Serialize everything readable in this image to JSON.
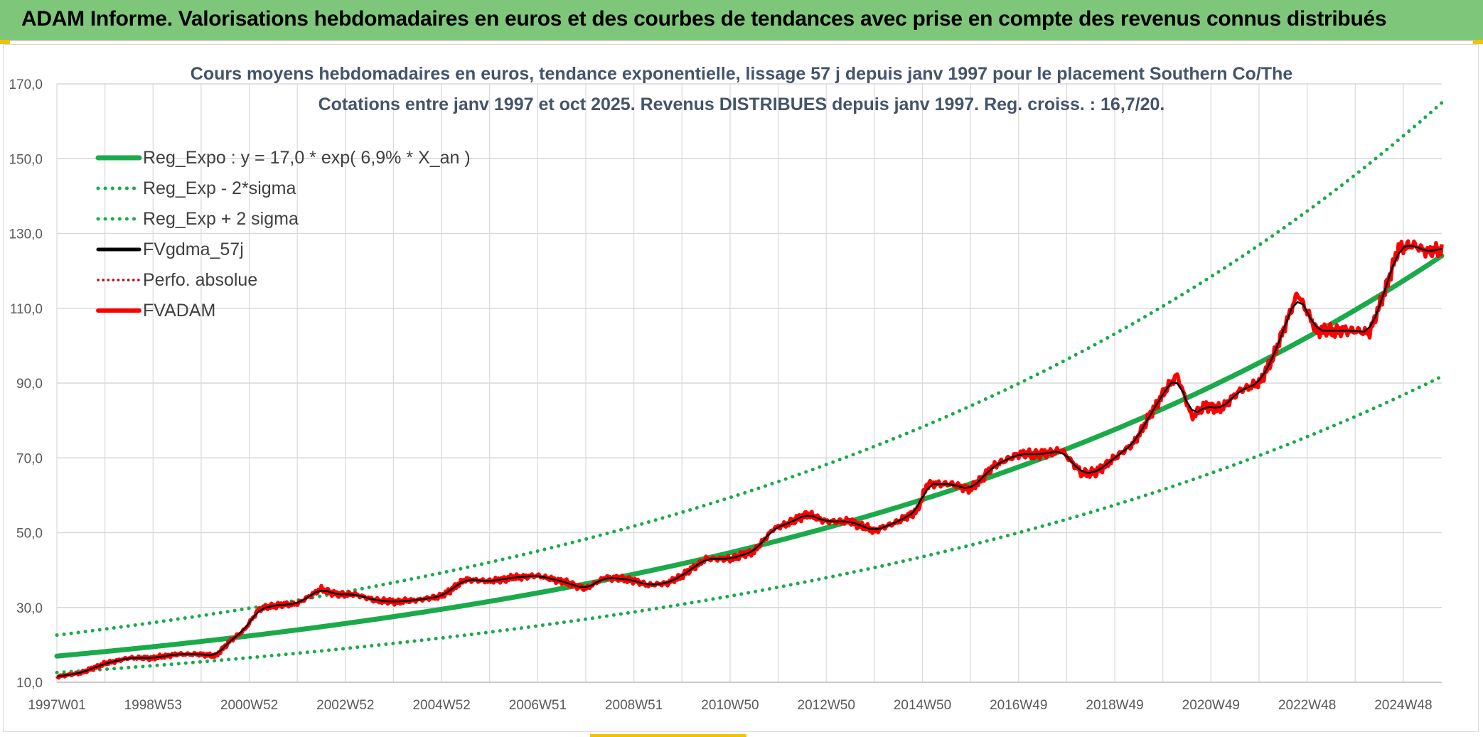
{
  "banner": {
    "text": "ADAM Informe. Valorisations hebdomadaires en euros et des courbes de tendances avec prise en compte des revenus connus distribués"
  },
  "colors": {
    "banner_bg": "#7ec77a",
    "reg_green": "#1aaa4a",
    "fv_black": "#000000",
    "fvadam_red": "#ff0000",
    "perfo_red": "#c00000",
    "grid": "#d9d9d9",
    "accent_yellow": "#f2c200"
  },
  "chart_data": {
    "type": "line",
    "title": "Cours moyens hebdomadaires en euros, tendance exponentielle, lissage 57 j depuis janv 1997 pour le placement Southern Co/The",
    "subtitle": "Cotations entre janv 1997 et oct 2025. Revenus DISTRIBUES depuis janv 1997. Reg. croiss. : 16,7/20.",
    "xlabel": "",
    "ylabel": "",
    "x_range": [
      1997.0,
      2025.8
    ],
    "ylim": [
      10,
      170
    ],
    "yticks": [
      "10,0",
      "30,0",
      "50,0",
      "70,0",
      "90,0",
      "110,0",
      "130,0",
      "150,0",
      "170,0"
    ],
    "xticks": [
      {
        "label": "1997W01",
        "x": 1997.0
      },
      {
        "label": "1998W53",
        "x": 1999.0
      },
      {
        "label": "2000W52",
        "x": 2001.0
      },
      {
        "label": "2002W52",
        "x": 2003.0
      },
      {
        "label": "2004W52",
        "x": 2005.0
      },
      {
        "label": "2006W51",
        "x": 2007.0
      },
      {
        "label": "2008W51",
        "x": 2009.0
      },
      {
        "label": "2010W50",
        "x": 2011.0
      },
      {
        "label": "2012W50",
        "x": 2013.0
      },
      {
        "label": "2014W50",
        "x": 2015.0
      },
      {
        "label": "2016W49",
        "x": 2017.0
      },
      {
        "label": "2018W49",
        "x": 2019.0
      },
      {
        "label": "2020W49",
        "x": 2021.0
      },
      {
        "label": "2022W48",
        "x": 2023.0
      },
      {
        "label": "2024W48",
        "x": 2025.0
      }
    ],
    "grid": true,
    "legend_position": "top-left",
    "regression": {
      "a": 17.0,
      "rate": 0.069,
      "lower_factor": 0.74,
      "upper_factor": 1.33
    },
    "series": [
      {
        "name": "Reg_Expo : y = 17,0 * exp( 6,9% *  X_an )",
        "style": "solid-green-thick",
        "kind": "exp_center"
      },
      {
        "name": "Reg_Exp - 2*sigma",
        "style": "dotted-green",
        "kind": "exp_lower"
      },
      {
        "name": "Reg_Exp + 2 sigma",
        "style": "dotted-green",
        "kind": "exp_upper"
      },
      {
        "name": "FVgdma_57j",
        "style": "solid-black",
        "kind": "smoothed"
      },
      {
        "name": "Perfo. absolue",
        "style": "dotted-red",
        "kind": "none"
      },
      {
        "name": "FVADAM",
        "style": "solid-red-thick",
        "kind": "values",
        "x": [
          1997.0,
          1997.5,
          1998.0,
          1998.5,
          1999.0,
          1999.5,
          2000.0,
          2000.3,
          2000.6,
          2000.9,
          2001.2,
          2001.5,
          2002.0,
          2002.5,
          2002.8,
          2003.2,
          2003.6,
          2004.0,
          2004.5,
          2005.0,
          2005.5,
          2006.0,
          2006.5,
          2007.0,
          2007.5,
          2008.0,
          2008.4,
          2008.9,
          2009.3,
          2009.7,
          2010.0,
          2010.5,
          2011.0,
          2011.5,
          2011.9,
          2012.3,
          2012.6,
          2013.0,
          2013.5,
          2014.0,
          2014.5,
          2014.9,
          2015.1,
          2015.6,
          2016.0,
          2016.5,
          2017.0,
          2017.5,
          2017.9,
          2018.3,
          2018.6,
          2019.0,
          2019.4,
          2019.9,
          2020.1,
          2020.3,
          2020.6,
          2020.9,
          2021.2,
          2021.6,
          2022.0,
          2022.3,
          2022.5,
          2022.8,
          2023.2,
          2023.6,
          2024.0,
          2024.3,
          2024.6,
          2024.9,
          2025.2,
          2025.5,
          2025.8
        ],
        "y": [
          11.5,
          12.5,
          15.0,
          16.5,
          16.5,
          17.5,
          17.5,
          17.0,
          21.0,
          24.0,
          29.5,
          30.5,
          31.0,
          35.0,
          33.5,
          33.5,
          32.0,
          31.5,
          32.0,
          33.0,
          37.5,
          37.0,
          38.0,
          38.5,
          37.0,
          35.0,
          38.0,
          37.5,
          36.0,
          36.5,
          38.5,
          43.0,
          43.0,
          45.0,
          51.0,
          53.0,
          55.0,
          53.0,
          53.0,
          50.5,
          53.0,
          56.0,
          63.0,
          63.0,
          61.5,
          68.0,
          71.0,
          71.0,
          72.0,
          66.0,
          66.0,
          70.0,
          74.0,
          85.0,
          89.0,
          92.0,
          81.0,
          84.0,
          83.0,
          88.0,
          90.0,
          97.0,
          104.0,
          114.0,
          104.0,
          104.0,
          104.0,
          103.5,
          114.0,
          126.0,
          127.0,
          125.0,
          126.0
        ]
      }
    ]
  }
}
